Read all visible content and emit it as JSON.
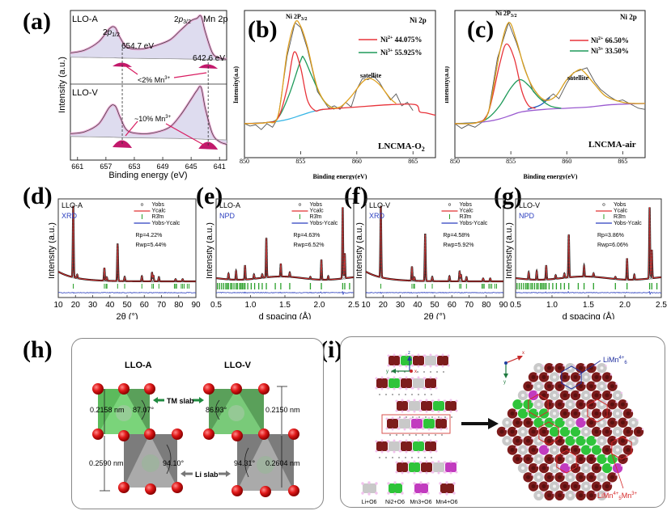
{
  "panel_labels": [
    "(a)",
    "(b)",
    "(c)",
    "(d)",
    "(e)",
    "(f)",
    "(g)",
    "(h)",
    "(i)"
  ],
  "chart_data": [
    {
      "id": "a",
      "type": "line",
      "title": "Mn 2p",
      "xlabel": "Binding energy (eV)",
      "ylabel": "Intensity (a.u.)",
      "xlim": [
        662,
        640
      ],
      "xticks": [
        661,
        657,
        653,
        649,
        645,
        641
      ],
      "reversed_x": true,
      "subpanels": [
        {
          "sample": "LLO-A",
          "annotation": "<2% Mn3+",
          "mn3_fraction_pct_max": 2
        },
        {
          "sample": "LLO-V",
          "annotation": "~10% Mn3+",
          "mn3_fraction_pct": 10
        }
      ],
      "peak_labels": [
        {
          "text": "2p1/2",
          "x": 655.8
        },
        {
          "text": "2p3/2",
          "x": 643.7
        }
      ],
      "reference_lines": [
        {
          "x": 654.7,
          "label": "654.7 eV"
        },
        {
          "x": 642.6,
          "label": "642.6 eV"
        }
      ],
      "series": [
        {
          "name": "LLO-A",
          "x": [
            662,
            660,
            658,
            656.5,
            655.7,
            655,
            654,
            652,
            650,
            648,
            646.5,
            645,
            644.2,
            643.6,
            643,
            642,
            641,
            640
          ],
          "y": [
            0.35,
            0.4,
            0.55,
            0.78,
            0.8,
            0.62,
            0.45,
            0.42,
            0.48,
            0.58,
            0.75,
            0.92,
            0.96,
            1.0,
            0.72,
            0.35,
            0.26,
            0.24
          ]
        },
        {
          "name": "LLO-V",
          "x": [
            662,
            660,
            658,
            656.5,
            655.7,
            655,
            654,
            652,
            650,
            648,
            646.5,
            645,
            644.2,
            643.6,
            643,
            642,
            641,
            640
          ],
          "y": [
            0.3,
            0.33,
            0.45,
            0.7,
            0.72,
            0.55,
            0.35,
            0.3,
            0.32,
            0.4,
            0.58,
            0.82,
            0.95,
            1.0,
            0.68,
            0.3,
            0.18,
            0.14
          ]
        }
      ]
    },
    {
      "id": "b",
      "type": "line",
      "title": "Ni 2p",
      "peak_label": "Ni 2P3/2",
      "sample": "LNCMA-O2",
      "xlabel": "Binding energy(eV)",
      "ylabel": "Intensity(a.u)",
      "xlim": [
        850,
        867
      ],
      "xticks": [
        850,
        855,
        860,
        865
      ],
      "legend": [
        {
          "name": "Ni2+",
          "value": "44.075%",
          "color": "#e8333a"
        },
        {
          "name": "Ni3+",
          "value": "55.925%",
          "color": "#1f9a5a"
        }
      ],
      "annotation": "satellite",
      "series": [
        {
          "name": "Ni2+",
          "color": "#e8333a",
          "x": [
            850,
            852,
            853,
            853.8,
            854.4,
            855,
            855.6,
            856.3,
            857,
            860,
            863,
            865.2,
            865.6,
            866.2,
            867
          ],
          "y": [
            0.15,
            0.16,
            0.2,
            0.45,
            0.75,
            0.62,
            0.35,
            0.26,
            0.27,
            0.29,
            0.31,
            0.31,
            0.25,
            0.24,
            0.22
          ]
        },
        {
          "name": "Ni3+",
          "color": "#1f9a5a",
          "x": [
            850,
            852,
            853,
            854,
            855,
            855.3,
            856,
            857,
            858
          ],
          "y": [
            0.15,
            0.16,
            0.2,
            0.4,
            0.68,
            0.7,
            0.55,
            0.35,
            0.27
          ]
        },
        {
          "name": "background",
          "color": "#38b6e6",
          "x": [
            850,
            852,
            853,
            854,
            855,
            856,
            857
          ],
          "y": [
            0.15,
            0.16,
            0.17,
            0.19,
            0.22,
            0.25,
            0.27
          ]
        },
        {
          "name": "envelope",
          "color": "#e0a020",
          "x": [
            850,
            852,
            853,
            853.8,
            854.5,
            855,
            855.6,
            856.5,
            857.5,
            858.5,
            859.5,
            860.5,
            861.2,
            862,
            863,
            863.5
          ],
          "y": [
            0.15,
            0.16,
            0.22,
            0.75,
            1.0,
            0.97,
            0.8,
            0.45,
            0.3,
            0.29,
            0.38,
            0.5,
            0.53,
            0.48,
            0.36,
            0.32
          ]
        },
        {
          "name": "raw",
          "color": "#555555",
          "x": [
            850,
            850.5,
            851,
            851.5,
            852,
            852.5,
            853,
            853.8,
            854.5,
            855,
            855.6,
            856.5,
            857,
            857.5,
            858,
            858.5,
            859,
            859.5,
            860,
            860.5,
            861,
            861.5,
            862,
            862.5,
            863,
            863.5,
            864,
            864.5,
            865
          ],
          "y": [
            0.15,
            0.13,
            0.14,
            0.1,
            0.15,
            0.12,
            0.2,
            0.72,
            1.0,
            0.96,
            0.78,
            0.42,
            0.35,
            0.28,
            0.3,
            0.27,
            0.33,
            0.29,
            0.44,
            0.53,
            0.52,
            0.55,
            0.5,
            0.42,
            0.35,
            0.4,
            0.3,
            0.33,
            0.26
          ]
        }
      ]
    },
    {
      "id": "c",
      "type": "line",
      "title": "Ni 2p",
      "peak_label": "Ni 2P3/2",
      "sample": "LNCMA-air",
      "xlabel": "Binding energy(eV)",
      "xlim": [
        850,
        867
      ],
      "xticks": [
        850,
        855,
        860,
        865
      ],
      "legend": [
        {
          "name": "Ni2+",
          "value": "66.50%",
          "color": "#e8333a"
        },
        {
          "name": "Ni3+",
          "value": "33.50%",
          "color": "#1f9a5a"
        }
      ],
      "annotation": "satellite",
      "series": [
        {
          "name": "Ni2+",
          "color": "#e8333a",
          "x": [
            850,
            852,
            853,
            854,
            854.6,
            855.3,
            856,
            856.6,
            857.2
          ],
          "y": [
            0.15,
            0.16,
            0.25,
            0.65,
            0.82,
            0.7,
            0.42,
            0.3,
            0.28
          ]
        },
        {
          "name": "Ni3+",
          "color": "#1f9a5a",
          "x": [
            850,
            852,
            853,
            854,
            855,
            855.8,
            856.6,
            857.5,
            858.5,
            859.5
          ],
          "y": [
            0.15,
            0.16,
            0.2,
            0.3,
            0.45,
            0.52,
            0.47,
            0.37,
            0.3,
            0.28
          ]
        },
        {
          "name": "background",
          "color": "#9a5ad0",
          "x": [
            850,
            852,
            853,
            854,
            855,
            856,
            858,
            860,
            862,
            864,
            867
          ],
          "y": [
            0.15,
            0.16,
            0.17,
            0.19,
            0.22,
            0.25,
            0.27,
            0.28,
            0.29,
            0.31,
            0.32
          ]
        },
        {
          "name": "satellite-fit",
          "color": "#2060c0",
          "x": [
            856.5,
            857.5,
            858,
            858.5
          ],
          "y": [
            0.27,
            0.3,
            0.33,
            0.37
          ]
        },
        {
          "name": "envelope",
          "color": "#d8a020",
          "x": [
            850,
            852,
            853,
            854,
            854.8,
            855.5,
            856.2,
            857,
            858,
            859,
            860,
            861,
            861.5,
            862.5,
            863.5,
            865,
            866,
            867
          ],
          "y": [
            0.15,
            0.16,
            0.25,
            0.75,
            1.0,
            0.85,
            0.62,
            0.45,
            0.35,
            0.38,
            0.52,
            0.6,
            0.59,
            0.48,
            0.38,
            0.33,
            0.32,
            0.32
          ]
        },
        {
          "name": "raw",
          "color": "#555555",
          "x": [
            850,
            850.6,
            851.2,
            851.8,
            852.4,
            853,
            853.8,
            854.8,
            855.5,
            856.3,
            857,
            857.6,
            858,
            858.8,
            859.3,
            860,
            860.6,
            861.2,
            861.8,
            862.5,
            863,
            863.8,
            864.5,
            865,
            865.6,
            866.4,
            867
          ],
          "y": [
            0.15,
            0.11,
            0.14,
            0.12,
            0.16,
            0.24,
            0.7,
            1.0,
            0.83,
            0.6,
            0.42,
            0.36,
            0.34,
            0.4,
            0.36,
            0.49,
            0.58,
            0.6,
            0.62,
            0.5,
            0.44,
            0.38,
            0.34,
            0.35,
            0.32,
            0.28,
            0.27
          ]
        }
      ]
    },
    {
      "id": "d",
      "type": "line",
      "sample": "LLO-A",
      "method": "XRD",
      "xlabel": "2θ (°)",
      "ylabel": "Intensity (a.u.)",
      "xlim": [
        10,
        90
      ],
      "xticks": [
        10,
        20,
        30,
        40,
        50,
        60,
        70,
        80,
        90
      ],
      "legend": [
        "Yobs",
        "Ycalc",
        "R3̄m",
        "Yobs-Ycalc"
      ],
      "stats": {
        "Rp": "4.22%",
        "Rwp": "5.44%"
      },
      "peaks": [
        [
          18.7,
          1.0
        ],
        [
          21,
          0.05
        ],
        [
          36.8,
          0.18
        ],
        [
          38.2,
          0.05
        ],
        [
          44.5,
          0.52
        ],
        [
          48.6,
          0.06
        ],
        [
          58.6,
          0.07
        ],
        [
          64.5,
          0.12
        ],
        [
          65.3,
          0.08
        ],
        [
          68.5,
          0.06
        ],
        [
          78.2,
          0.03
        ],
        [
          82.3,
          0.03
        ]
      ],
      "tick_marks": [
        18.7,
        36.8,
        37.8,
        38.3,
        44.5,
        48.6,
        58.6,
        64.5,
        65.3,
        68.5,
        77.5,
        78.2,
        78.8,
        81.5,
        82.3,
        83.2,
        85,
        86
      ]
    },
    {
      "id": "e",
      "type": "line",
      "sample": "LLO-A",
      "method": "NPD",
      "xlabel": "d spacing (Å)",
      "ylabel": "Intensity (a.u.)",
      "xlim": [
        0.5,
        2.5
      ],
      "xticks": [
        0.5,
        1.0,
        1.5,
        2.0,
        2.5
      ],
      "legend": [
        "Yobs",
        "Ycalc",
        "R3̄m",
        "Yobs-Ycalc"
      ],
      "stats": {
        "Rp": "4.63%",
        "Rwp": "6.52%"
      },
      "peaks": [
        [
          0.68,
          0.08
        ],
        [
          0.79,
          0.12
        ],
        [
          0.92,
          0.2
        ],
        [
          1.05,
          0.06
        ],
        [
          1.17,
          0.05
        ],
        [
          1.23,
          0.55
        ],
        [
          1.44,
          0.18
        ],
        [
          1.57,
          0.06
        ],
        [
          1.87,
          0.03
        ],
        [
          2.03,
          0.28
        ],
        [
          2.13,
          0.05
        ],
        [
          2.34,
          1.0
        ],
        [
          2.37,
          0.35
        ]
      ],
      "tick_marks": [
        0.52,
        0.55,
        0.58,
        0.61,
        0.64,
        0.66,
        0.68,
        0.71,
        0.73,
        0.76,
        0.79,
        0.81,
        0.84,
        0.86,
        0.88,
        0.9,
        0.92,
        0.96,
        1.01,
        1.06,
        1.12,
        1.17,
        1.23,
        1.36,
        1.44,
        1.57,
        1.87,
        2.03,
        2.34,
        2.37,
        2.44
      ]
    },
    {
      "id": "f",
      "type": "line",
      "sample": "LLO-V",
      "method": "XRD",
      "xlabel": "2θ (°)",
      "ylabel": "Intensity (a.u.)",
      "xlim": [
        10,
        90
      ],
      "xticks": [
        10,
        20,
        30,
        40,
        50,
        60,
        70,
        80,
        90
      ],
      "legend": [
        "Yobs",
        "Ycalc",
        "R3̄m",
        "Yobs-Ycalc"
      ],
      "stats": {
        "Rp": "4.58%",
        "Rwp": "5.92%"
      },
      "peaks": [
        [
          18.7,
          1.0
        ],
        [
          36.8,
          0.2
        ],
        [
          38.2,
          0.05
        ],
        [
          44.5,
          0.66
        ],
        [
          48.6,
          0.06
        ],
        [
          58.6,
          0.07
        ],
        [
          64.5,
          0.14
        ],
        [
          65.3,
          0.09
        ],
        [
          68.5,
          0.06
        ],
        [
          78.2,
          0.04
        ],
        [
          82.3,
          0.04
        ]
      ],
      "tick_marks": [
        18.7,
        36.8,
        37.8,
        38.3,
        44.5,
        48.6,
        58.6,
        64.5,
        65.3,
        68.5,
        77.5,
        78.2,
        78.8,
        81.5,
        82.3,
        83.2,
        85,
        86
      ]
    },
    {
      "id": "g",
      "type": "line",
      "sample": "LLO-V",
      "method": "NPD",
      "xlabel": "d spacing (Å)",
      "ylabel": "Intensity (a.u.)",
      "xlim": [
        0.5,
        2.5
      ],
      "xticks": [
        0.5,
        1.0,
        1.5,
        2.0,
        2.5
      ],
      "legend": [
        "Yobs",
        "Ycalc",
        "R3̄m",
        "Yobs-Ycalc"
      ],
      "stats": {
        "Rp": "3.86%",
        "Rwp": "6.06%"
      },
      "peaks": [
        [
          0.68,
          0.1
        ],
        [
          0.79,
          0.12
        ],
        [
          0.92,
          0.2
        ],
        [
          1.05,
          0.05
        ],
        [
          1.17,
          0.06
        ],
        [
          1.23,
          0.6
        ],
        [
          1.44,
          0.15
        ],
        [
          1.57,
          0.05
        ],
        [
          1.87,
          0.03
        ],
        [
          2.03,
          0.3
        ],
        [
          2.13,
          0.07
        ],
        [
          2.34,
          1.0
        ],
        [
          2.37,
          0.4
        ]
      ],
      "tick_marks": [
        0.52,
        0.55,
        0.58,
        0.61,
        0.64,
        0.66,
        0.68,
        0.71,
        0.73,
        0.76,
        0.79,
        0.81,
        0.84,
        0.86,
        0.88,
        0.9,
        0.92,
        0.96,
        1.01,
        1.06,
        1.12,
        1.17,
        1.23,
        1.36,
        1.44,
        1.57,
        1.87,
        2.03,
        2.34,
        2.37,
        2.44
      ]
    }
  ],
  "panel_h": {
    "titles": [
      "LLO-A",
      "LLO-V"
    ],
    "tm_slab_label": "TM slab",
    "li_slab_label": "Li slab",
    "llo_a": {
      "tm_height": "0.2158 nm",
      "tm_angle": "87.07°",
      "li_height": "0.2590 nm",
      "li_angle": "94.10°"
    },
    "llo_v": {
      "tm_height": "0.2150 nm",
      "tm_angle": "86.93°",
      "li_height": "0.2604 nm",
      "li_angle": "94.31°"
    }
  },
  "panel_i": {
    "axes_left": {
      "z": "z",
      "y": "y",
      "x": "x"
    },
    "axes_right": {
      "x": "x",
      "y": "y"
    },
    "label_blue": "LiMn4+6",
    "label_red": "LiMn4+5Mn3+",
    "legend": [
      "Li+O6",
      "Ni2+O6",
      "Mn3+O6",
      "Mn4+O6"
    ],
    "colors": {
      "Li": "#c9c9c9",
      "Ni": "#2fc43a",
      "Mn3": "#c23bbf",
      "Mn4": "#7d1c1c",
      "O": "#f2c2ee"
    }
  }
}
